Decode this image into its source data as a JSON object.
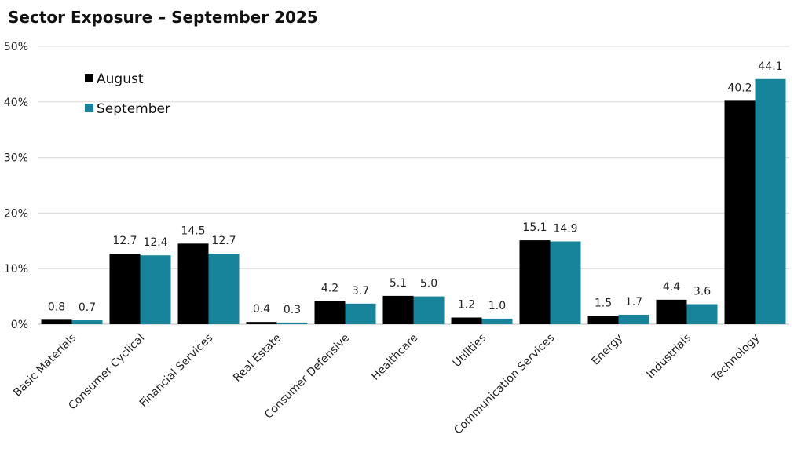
{
  "chart_data": {
    "type": "bar",
    "title": "Sector Exposure – September 2025",
    "categories": [
      "Basic Materials",
      "Consumer Cyclical",
      "Financial Services",
      "Real Estate",
      "Consumer Defensive",
      "Healthcare",
      "Utilities",
      "Communication Services",
      "Energy",
      "Industrials",
      "Technology"
    ],
    "series": [
      {
        "name": "August",
        "color": "#000000",
        "values": [
          0.8,
          12.7,
          14.5,
          0.4,
          4.2,
          5.1,
          1.2,
          15.1,
          1.5,
          4.4,
          40.2
        ],
        "labels": [
          "0.8",
          "12.7",
          "14.5",
          "0.4",
          "4.2",
          "5.1",
          "1.2",
          "15.1",
          "1.5",
          "4.4",
          "40.2"
        ]
      },
      {
        "name": "September",
        "color": "#17849b",
        "values": [
          0.7,
          12.4,
          12.7,
          0.3,
          3.7,
          5.0,
          1.0,
          14.9,
          1.7,
          3.6,
          44.1
        ],
        "labels": [
          "0.7",
          "12.4",
          "12.7",
          "0.3",
          "3.7",
          "5.0",
          "1.0",
          "14.9",
          "1.7",
          "3.6",
          "44.1"
        ]
      }
    ],
    "ylim": [
      0,
      50
    ],
    "yticks": [
      0,
      10,
      20,
      30,
      40,
      50
    ],
    "ytick_labels": [
      "0%",
      "10%",
      "20%",
      "30%",
      "40%",
      "50%"
    ],
    "grid": true,
    "legend_position": "top-left"
  }
}
